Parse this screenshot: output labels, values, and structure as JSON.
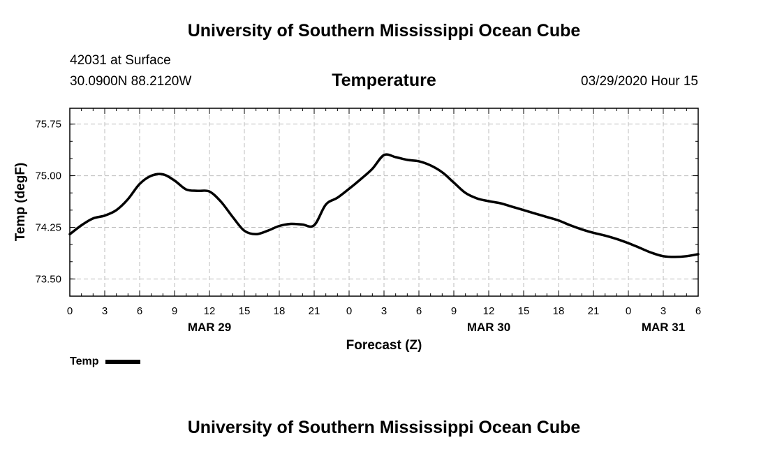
{
  "header": {
    "title": "University of Southern Mississippi Ocean Cube",
    "station": "42031 at Surface",
    "coords": "30.0900N 88.2120W",
    "chart_title": "Temperature",
    "datetime": "03/29/2020 Hour 15"
  },
  "footer": {
    "title": "University of Southern Mississippi Ocean Cube"
  },
  "chart_data": {
    "type": "line",
    "title": "Temperature",
    "xlabel": "Forecast (Z)",
    "ylabel": "Temp (degF)",
    "x_unit": "forecast hour from 03/29 00Z",
    "xlim": [
      0,
      54
    ],
    "ylim": [
      73.25,
      75.98
    ],
    "yticks": [
      73.5,
      74.25,
      75.0,
      75.75
    ],
    "ytick_labels": [
      "73.50",
      "74.25",
      "75.00",
      "75.75"
    ],
    "xticks": [
      0,
      3,
      6,
      9,
      12,
      15,
      18,
      21,
      24,
      27,
      30,
      33,
      36,
      39,
      42,
      45,
      48,
      51,
      54
    ],
    "xtick_labels": [
      "0",
      "3",
      "6",
      "9",
      "12",
      "15",
      "18",
      "21",
      "0",
      "3",
      "6",
      "9",
      "12",
      "15",
      "18",
      "21",
      "0",
      "3",
      "6"
    ],
    "date_labels": [
      {
        "x": 12,
        "label": "MAR 29"
      },
      {
        "x": 36,
        "label": "MAR 30"
      },
      {
        "x": 51,
        "label": "MAR 31"
      }
    ],
    "grid": true,
    "legend_position": "bottom-left",
    "series": [
      {
        "name": "Temp",
        "color": "#000000",
        "x": [
          0,
          1,
          2,
          3,
          4,
          5,
          6,
          7,
          8,
          9,
          10,
          11,
          12,
          13,
          14,
          15,
          16,
          17,
          18,
          19,
          20,
          21,
          22,
          23,
          24,
          25,
          26,
          27,
          28,
          29,
          30,
          31,
          32,
          33,
          34,
          35,
          36,
          37,
          38,
          39,
          40,
          41,
          42,
          43,
          44,
          45,
          46,
          47,
          48,
          49,
          50,
          51,
          52,
          53,
          54
        ],
        "values": [
          74.15,
          74.28,
          74.38,
          74.42,
          74.5,
          74.66,
          74.88,
          75.0,
          75.02,
          74.93,
          74.8,
          74.78,
          74.77,
          74.62,
          74.4,
          74.2,
          74.15,
          74.2,
          74.27,
          74.3,
          74.29,
          74.28,
          74.58,
          74.68,
          74.81,
          74.95,
          75.1,
          75.3,
          75.27,
          75.23,
          75.21,
          75.15,
          75.05,
          74.9,
          74.75,
          74.67,
          74.63,
          74.6,
          74.55,
          74.5,
          74.45,
          74.4,
          74.35,
          74.28,
          74.22,
          74.17,
          74.13,
          74.08,
          74.02,
          73.95,
          73.88,
          73.83,
          73.82,
          73.83,
          73.86
        ]
      }
    ]
  },
  "legend": {
    "label": "Temp"
  }
}
